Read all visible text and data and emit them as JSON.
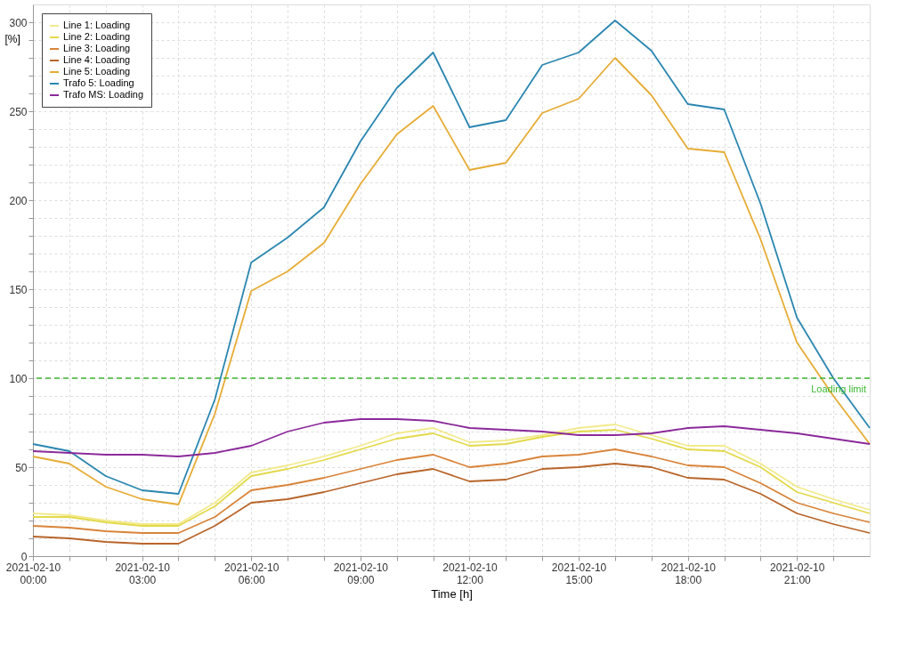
{
  "chart_data": {
    "type": "line",
    "x": [
      "2021-02-10T00:00",
      "2021-02-10T01:00",
      "2021-02-10T02:00",
      "2021-02-10T03:00",
      "2021-02-10T04:00",
      "2021-02-10T05:00",
      "2021-02-10T06:00",
      "2021-02-10T07:00",
      "2021-02-10T08:00",
      "2021-02-10T09:00",
      "2021-02-10T10:00",
      "2021-02-10T11:00",
      "2021-02-10T12:00",
      "2021-02-10T13:00",
      "2021-02-10T14:00",
      "2021-02-10T15:00",
      "2021-02-10T16:00",
      "2021-02-10T17:00",
      "2021-02-10T18:00",
      "2021-02-10T19:00",
      "2021-02-10T20:00",
      "2021-02-10T21:00",
      "2021-02-10T22:00",
      "2021-02-10T23:00"
    ],
    "series": [
      {
        "name": "Line 1: Loading",
        "color": "#f2ea8c",
        "values": [
          24,
          23,
          20,
          18,
          18,
          30,
          47,
          51,
          56,
          62,
          69,
          72,
          64,
          65,
          68,
          72,
          74,
          68,
          62,
          62,
          52,
          39,
          32,
          26
        ]
      },
      {
        "name": "Line 2: Loading",
        "color": "#e3d94a",
        "values": [
          22,
          22,
          19,
          17,
          17,
          28,
          45,
          49,
          54,
          60,
          66,
          69,
          62,
          63,
          67,
          70,
          71,
          66,
          60,
          59,
          50,
          36,
          30,
          24
        ]
      },
      {
        "name": "Line 3: Loading",
        "color": "#d9843a",
        "values": [
          17,
          16,
          14,
          13,
          13,
          22,
          37,
          40,
          44,
          49,
          54,
          57,
          50,
          52,
          56,
          57,
          60,
          56,
          51,
          50,
          41,
          30,
          24,
          19
        ]
      },
      {
        "name": "Line 4: Loading",
        "color": "#b8652a",
        "values": [
          11,
          10,
          8,
          7,
          7,
          17,
          30,
          32,
          36,
          41,
          46,
          49,
          42,
          43,
          49,
          50,
          52,
          50,
          44,
          43,
          35,
          24,
          18,
          13
        ]
      },
      {
        "name": "Line 5: Loading",
        "color": "#e6ac35",
        "values": [
          56,
          52,
          39,
          32,
          29,
          80,
          149,
          160,
          176,
          209,
          237,
          253,
          217,
          221,
          249,
          257,
          280,
          259,
          229,
          227,
          178,
          120,
          90,
          63
        ]
      },
      {
        "name": "Trafo 5: Loading",
        "color": "#2a86b0",
        "values": [
          63,
          59,
          45,
          37,
          35,
          88,
          165,
          179,
          196,
          233,
          263,
          283,
          241,
          245,
          276,
          283,
          301,
          284,
          254,
          251,
          198,
          134,
          100,
          72
        ]
      },
      {
        "name": "Trafo MS: Loading",
        "color": "#8b2a9a",
        "values": [
          59,
          58,
          57,
          57,
          56,
          58,
          62,
          70,
          75,
          77,
          77,
          76,
          72,
          71,
          70,
          68,
          68,
          69,
          72,
          73,
          71,
          69,
          66,
          63
        ]
      }
    ],
    "xlabel": "Time [h]",
    "ylabel": "[%]",
    "xlim": [
      "2021-02-10T00:00",
      "2021-02-10T23:00"
    ],
    "xticks": [
      {
        "value": "2021-02-10T00:00",
        "label": "2021-02-10\n00:00"
      },
      {
        "value": "2021-02-10T01:00",
        "label": null
      },
      {
        "value": "2021-02-10T02:00",
        "label": null
      },
      {
        "value": "2021-02-10T03:00",
        "label": "2021-02-10\n03:00"
      },
      {
        "value": "2021-02-10T04:00",
        "label": null
      },
      {
        "value": "2021-02-10T05:00",
        "label": null
      },
      {
        "value": "2021-02-10T06:00",
        "label": "2021-02-10\n06:00"
      },
      {
        "value": "2021-02-10T07:00",
        "label": null
      },
      {
        "value": "2021-02-10T08:00",
        "label": null
      },
      {
        "value": "2021-02-10T09:00",
        "label": "2021-02-10\n09:00"
      },
      {
        "value": "2021-02-10T10:00",
        "label": null
      },
      {
        "value": "2021-02-10T11:00",
        "label": null
      },
      {
        "value": "2021-02-10T12:00",
        "label": "2021-02-10\n12:00"
      },
      {
        "value": "2021-02-10T13:00",
        "label": null
      },
      {
        "value": "2021-02-10T14:00",
        "label": null
      },
      {
        "value": "2021-02-10T15:00",
        "label": "2021-02-10\n15:00"
      },
      {
        "value": "2021-02-10T16:00",
        "label": null
      },
      {
        "value": "2021-02-10T17:00",
        "label": null
      },
      {
        "value": "2021-02-10T18:00",
        "label": "2021-02-10\n18:00"
      },
      {
        "value": "2021-02-10T19:00",
        "label": null
      },
      {
        "value": "2021-02-10T20:00",
        "label": null
      },
      {
        "value": "2021-02-10T21:00",
        "label": "2021-02-10\n21:00"
      },
      {
        "value": "2021-02-10T22:00",
        "label": null
      }
    ],
    "ylim": [
      0,
      310
    ],
    "yticks": [
      0,
      {
        "value": 10,
        "label": null
      },
      {
        "value": 20,
        "label": null
      },
      {
        "value": 30,
        "label": null
      },
      {
        "value": 40,
        "label": null
      },
      50,
      {
        "value": 60,
        "label": null
      },
      {
        "value": 70,
        "label": null
      },
      {
        "value": 80,
        "label": null
      },
      {
        "value": 90,
        "label": null
      },
      100,
      {
        "value": 110,
        "label": null
      },
      {
        "value": 120,
        "label": null
      },
      {
        "value": 130,
        "label": null
      },
      {
        "value": 140,
        "label": null
      },
      150,
      {
        "value": 160,
        "label": null
      },
      {
        "value": 170,
        "label": null
      },
      {
        "value": 180,
        "label": null
      },
      {
        "value": 190,
        "label": null
      },
      200,
      {
        "value": 210,
        "label": null
      },
      {
        "value": 220,
        "label": null
      },
      {
        "value": 230,
        "label": null
      },
      {
        "value": 240,
        "label": null
      },
      250,
      {
        "value": 260,
        "label": null
      },
      {
        "value": 270,
        "label": null
      },
      {
        "value": 280,
        "label": null
      },
      {
        "value": 290,
        "label": null
      },
      300
    ],
    "ref_lines": [
      {
        "axis": "y",
        "value": 100,
        "label": "Loading limit",
        "color": "#3cb832",
        "line_style": "dashed"
      }
    ],
    "grid": true,
    "legend": "top left",
    "line_style": "solid",
    "marker": "none"
  }
}
